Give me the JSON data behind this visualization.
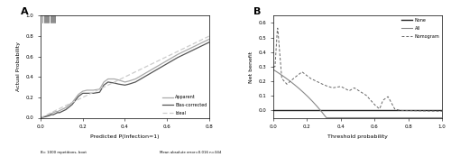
{
  "panel_a": {
    "label": "A",
    "xlabel": "Predicted P(Infection=1)",
    "ylabel": "Actual Probability",
    "xlim": [
      0.0,
      0.8
    ],
    "ylim": [
      0.0,
      1.0
    ],
    "xticks": [
      0.0,
      0.2,
      0.4,
      0.6,
      0.8
    ],
    "yticks": [
      0.0,
      0.2,
      0.4,
      0.6,
      0.8,
      1.0
    ],
    "footnote_left": "B= 1000 repetitions, boot",
    "footnote_right": "Mean absolute error=0.016 n=344"
  },
  "panel_b": {
    "label": "B",
    "xlabel": "Threshold probability",
    "ylabel": "Net benefit",
    "xlim": [
      0.0,
      1.0
    ],
    "ylim": [
      -0.05,
      0.65
    ],
    "xticks": [
      0.0,
      0.2,
      0.4,
      0.6,
      0.8,
      1.0
    ],
    "yticks": [
      0.0,
      0.1,
      0.2,
      0.3,
      0.4,
      0.5,
      0.6
    ]
  },
  "apparent_color": "#aaaaaa",
  "bias_corrected_color": "#555555",
  "ideal_color": "#cccccc",
  "none_color": "#222222",
  "all_color": "#888888",
  "nomogram_color": "#666666"
}
